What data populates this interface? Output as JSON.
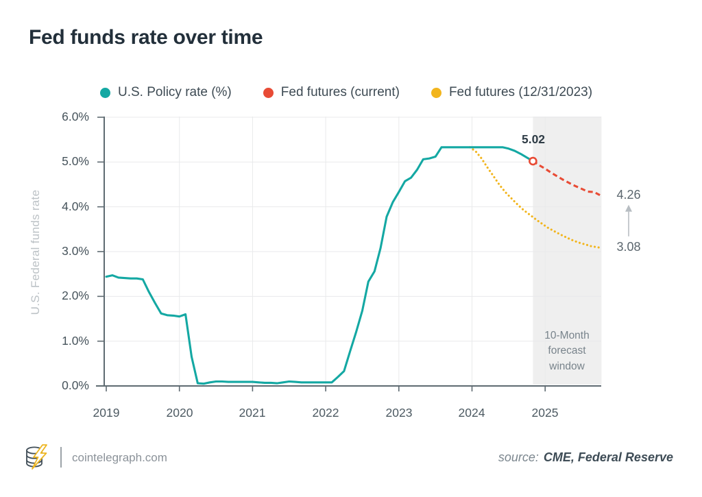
{
  "title": "Fed funds rate over time",
  "chart_data": {
    "type": "line",
    "title": "Fed funds rate over time",
    "x_axis": {
      "tick_labels": [
        "2019",
        "2020",
        "2021",
        "2022",
        "2023",
        "2024",
        "2025"
      ],
      "tick_values": [
        2019,
        2020,
        2021,
        2022,
        2023,
        2024,
        2025
      ],
      "range": [
        2019,
        2025.77
      ]
    },
    "y_axis": {
      "label": "U.S. Federal funds rate",
      "tick_labels": [
        "0.0%",
        "1.0%",
        "2.0%",
        "3.0%",
        "4.0%",
        "5.0%",
        "6.0%"
      ],
      "tick_values": [
        0,
        1,
        2,
        3,
        4,
        5,
        6
      ],
      "range": [
        0,
        6
      ]
    },
    "grid": true,
    "legend_position": "top",
    "series": [
      {
        "name": "U.S. Policy rate (%)",
        "color": "#14a8a3",
        "line_style": "solid",
        "points": [
          [
            2019.0,
            2.44
          ],
          [
            2019.083,
            2.47
          ],
          [
            2019.167,
            2.42
          ],
          [
            2019.25,
            2.41
          ],
          [
            2019.333,
            2.4
          ],
          [
            2019.417,
            2.4
          ],
          [
            2019.5,
            2.38
          ],
          [
            2019.583,
            2.1
          ],
          [
            2019.667,
            1.85
          ],
          [
            2019.75,
            1.62
          ],
          [
            2019.833,
            1.58
          ],
          [
            2019.917,
            1.57
          ],
          [
            2020.0,
            1.55
          ],
          [
            2020.083,
            1.6
          ],
          [
            2020.167,
            0.65
          ],
          [
            2020.25,
            0.06
          ],
          [
            2020.333,
            0.05
          ],
          [
            2020.417,
            0.08
          ],
          [
            2020.5,
            0.1
          ],
          [
            2020.583,
            0.1
          ],
          [
            2020.667,
            0.09
          ],
          [
            2020.75,
            0.09
          ],
          [
            2020.833,
            0.09
          ],
          [
            2020.917,
            0.09
          ],
          [
            2021.0,
            0.09
          ],
          [
            2021.083,
            0.08
          ],
          [
            2021.167,
            0.07
          ],
          [
            2021.25,
            0.07
          ],
          [
            2021.333,
            0.06
          ],
          [
            2021.417,
            0.08
          ],
          [
            2021.5,
            0.1
          ],
          [
            2021.583,
            0.09
          ],
          [
            2021.667,
            0.08
          ],
          [
            2021.75,
            0.08
          ],
          [
            2021.833,
            0.08
          ],
          [
            2021.917,
            0.08
          ],
          [
            2022.0,
            0.08
          ],
          [
            2022.083,
            0.08
          ],
          [
            2022.167,
            0.2
          ],
          [
            2022.25,
            0.33
          ],
          [
            2022.333,
            0.77
          ],
          [
            2022.417,
            1.21
          ],
          [
            2022.5,
            1.68
          ],
          [
            2022.583,
            2.33
          ],
          [
            2022.667,
            2.56
          ],
          [
            2022.75,
            3.08
          ],
          [
            2022.833,
            3.78
          ],
          [
            2022.917,
            4.1
          ],
          [
            2023.0,
            4.33
          ],
          [
            2023.083,
            4.57
          ],
          [
            2023.167,
            4.65
          ],
          [
            2023.25,
            4.83
          ],
          [
            2023.333,
            5.06
          ],
          [
            2023.417,
            5.08
          ],
          [
            2023.5,
            5.12
          ],
          [
            2023.583,
            5.33
          ],
          [
            2023.667,
            5.33
          ],
          [
            2023.75,
            5.33
          ],
          [
            2023.833,
            5.33
          ],
          [
            2023.917,
            5.33
          ],
          [
            2024.0,
            5.33
          ],
          [
            2024.083,
            5.33
          ],
          [
            2024.167,
            5.33
          ],
          [
            2024.25,
            5.33
          ],
          [
            2024.333,
            5.33
          ],
          [
            2024.417,
            5.33
          ],
          [
            2024.5,
            5.3
          ],
          [
            2024.583,
            5.25
          ],
          [
            2024.667,
            5.18
          ],
          [
            2024.75,
            5.1
          ],
          [
            2024.833,
            5.02
          ]
        ]
      },
      {
        "name": "Fed futures (current)",
        "color": "#e84b35",
        "line_style": "dashed",
        "points": [
          [
            2024.833,
            5.02
          ],
          [
            2024.917,
            4.93
          ],
          [
            2025.0,
            4.85
          ],
          [
            2025.083,
            4.76
          ],
          [
            2025.167,
            4.68
          ],
          [
            2025.25,
            4.6
          ],
          [
            2025.333,
            4.53
          ],
          [
            2025.417,
            4.46
          ],
          [
            2025.5,
            4.4
          ],
          [
            2025.583,
            4.34
          ],
          [
            2025.667,
            4.33
          ],
          [
            2025.75,
            4.26
          ]
        ]
      },
      {
        "name": "Fed futures (12/31/2023)",
        "color": "#f2b51d",
        "line_style": "dotted",
        "points": [
          [
            2023.97,
            5.33
          ],
          [
            2024.05,
            5.24
          ],
          [
            2024.13,
            5.08
          ],
          [
            2024.21,
            4.88
          ],
          [
            2024.3,
            4.67
          ],
          [
            2024.38,
            4.48
          ],
          [
            2024.46,
            4.32
          ],
          [
            2024.55,
            4.17
          ],
          [
            2024.63,
            4.04
          ],
          [
            2024.71,
            3.92
          ],
          [
            2024.8,
            3.81
          ],
          [
            2024.88,
            3.71
          ],
          [
            2024.96,
            3.62
          ],
          [
            2025.04,
            3.53
          ],
          [
            2025.13,
            3.45
          ],
          [
            2025.21,
            3.38
          ],
          [
            2025.3,
            3.31
          ],
          [
            2025.38,
            3.25
          ],
          [
            2025.46,
            3.2
          ],
          [
            2025.55,
            3.16
          ],
          [
            2025.63,
            3.12
          ],
          [
            2025.71,
            3.1
          ],
          [
            2025.77,
            3.08
          ]
        ]
      }
    ],
    "annotations": {
      "last_actual": {
        "label": "5.02",
        "x": 2024.833,
        "y": 5.02
      },
      "current_futures_end": {
        "label": "4.26",
        "x": 2025.75,
        "y": 4.26
      },
      "dec2023_futures_end": {
        "label": "3.08",
        "x": 2025.75,
        "y": 3.08
      }
    },
    "forecast_window": {
      "label": "10-Month forecast window",
      "x_start": 2024.833,
      "x_end": 2025.77
    }
  },
  "footer": {
    "site": "cointelegraph.com",
    "source_label": "source:",
    "source_value": "CME, Federal Reserve"
  }
}
